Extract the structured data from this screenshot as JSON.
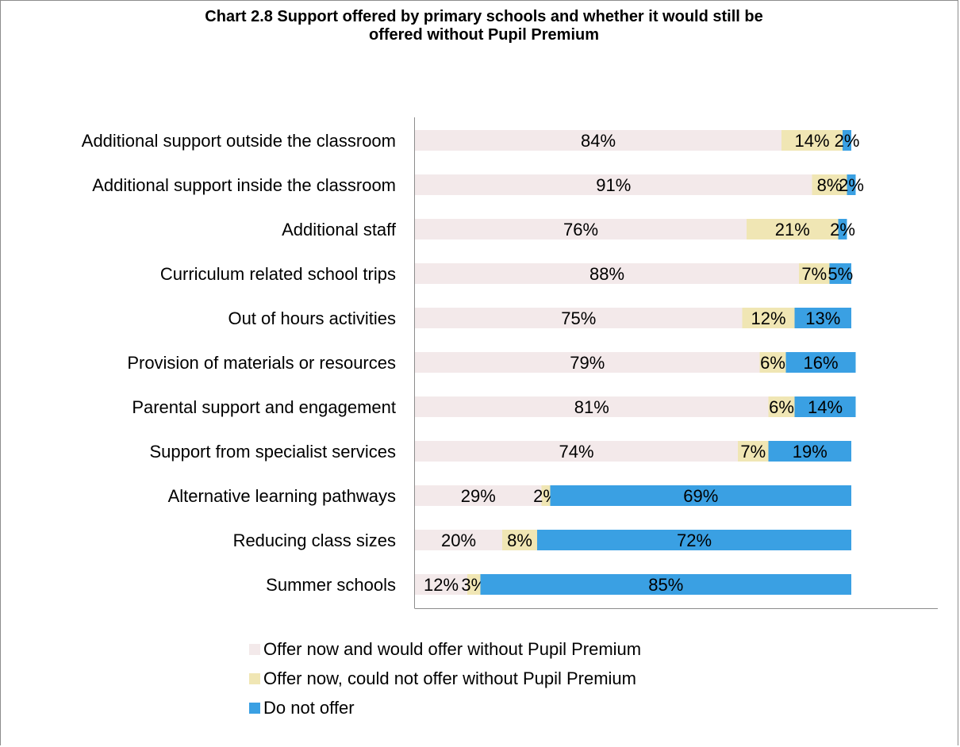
{
  "chart_data": {
    "type": "bar",
    "orientation": "horizontal",
    "stacked": true,
    "title_line1": "Chart 2.8  Support offered by primary schools and whether it would still be",
    "title_line2": "offered without Pupil Premium",
    "categories": [
      "Additional support outside the classroom",
      "Additional support inside the classroom",
      "Additional staff",
      "Curriculum related school trips",
      "Out of hours activities",
      "Provision of materials or resources",
      "Parental support and engagement",
      "Support from specialist services",
      "Alternative learning pathways",
      "Reducing class sizes",
      "Summer schools"
    ],
    "series": [
      {
        "name": "Offer now and would offer without Pupil Premium",
        "color": "#f3e9ea",
        "values": [
          84,
          91,
          76,
          88,
          75,
          79,
          81,
          74,
          29,
          20,
          12
        ]
      },
      {
        "name": "Offer now, could not offer without Pupil Premium",
        "color": "#f0e6b4",
        "values": [
          14,
          8,
          21,
          7,
          12,
          6,
          6,
          7,
          2,
          8,
          3
        ]
      },
      {
        "name": "Do not offer",
        "color": "#3aa0e3",
        "values": [
          2,
          2,
          2,
          5,
          13,
          16,
          14,
          19,
          69,
          72,
          85
        ]
      }
    ],
    "value_suffix": "%",
    "xlim": [
      0,
      100
    ],
    "legend_position": "bottom",
    "grid": false
  }
}
